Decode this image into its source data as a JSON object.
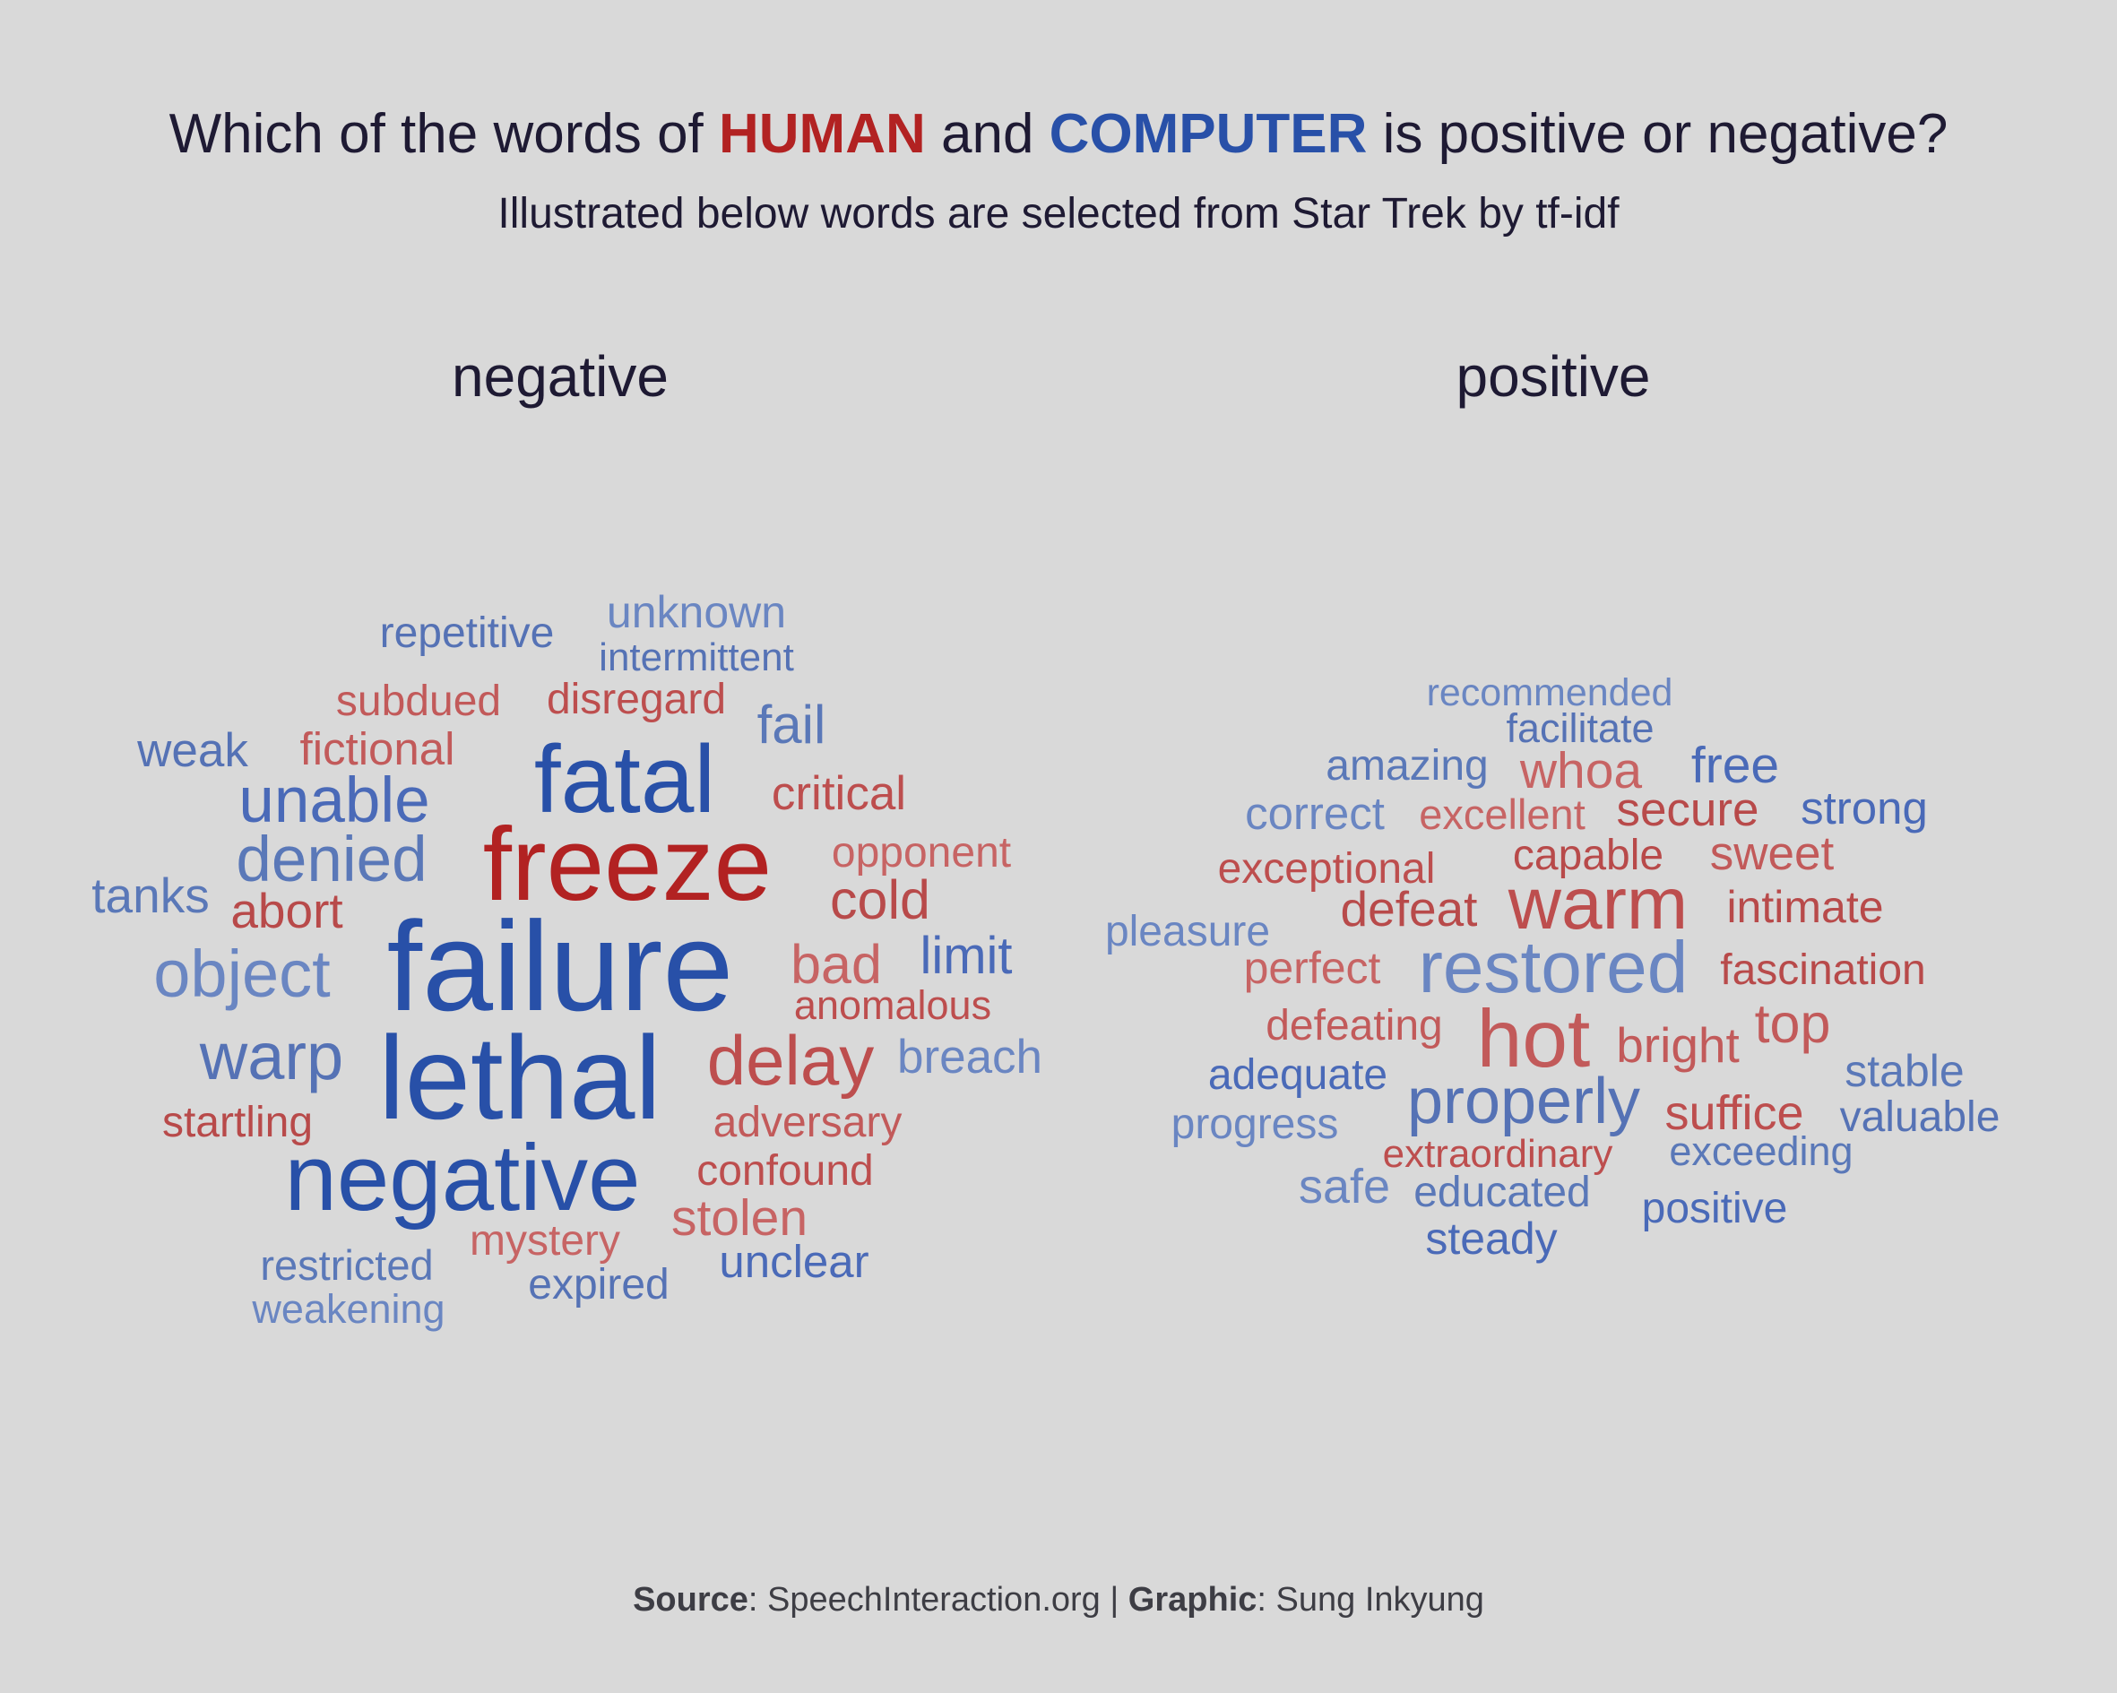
{
  "title": {
    "prefix": "Which of the words of ",
    "human": "HUMAN",
    "middle": " and ",
    "computer": "COMPUTER",
    "suffix": " is positive or negative?"
  },
  "subtitle": "Illustrated below words are selected from Star Trek by tf-idf",
  "caption": {
    "source_label": "Source",
    "source_value": ": SpeechInteraction.org | ",
    "graphic_label": "Graphic",
    "graphic_value": ": Sung Inkyung"
  },
  "colors": {
    "background": "#d9d9d9",
    "human": "#b22222",
    "computer": "#2850a8",
    "text": "#1e1a33"
  },
  "chart_data": {
    "type": "wordcloud",
    "facets": [
      "negative",
      "positive"
    ],
    "words": [
      {
        "word": "failure",
        "facet": "negative",
        "group": "computer",
        "weight": 100
      },
      {
        "word": "lethal",
        "facet": "negative",
        "group": "computer",
        "weight": 93
      },
      {
        "word": "freeze",
        "facet": "negative",
        "group": "human",
        "weight": 82
      },
      {
        "word": "fatal",
        "facet": "negative",
        "group": "computer",
        "weight": 75
      },
      {
        "word": "negative",
        "facet": "negative",
        "group": "computer",
        "weight": 74
      },
      {
        "word": "delay",
        "facet": "negative",
        "group": "human",
        "weight": 55
      },
      {
        "word": "object",
        "facet": "negative",
        "group": "computer",
        "weight": 52
      },
      {
        "word": "warp",
        "facet": "negative",
        "group": "computer",
        "weight": 52
      },
      {
        "word": "denied",
        "facet": "negative",
        "group": "computer",
        "weight": 50
      },
      {
        "word": "unable",
        "facet": "negative",
        "group": "computer",
        "weight": 50
      },
      {
        "word": "bad",
        "facet": "negative",
        "group": "human",
        "weight": 43
      },
      {
        "word": "cold",
        "facet": "negative",
        "group": "human",
        "weight": 43
      },
      {
        "word": "fail",
        "facet": "negative",
        "group": "computer",
        "weight": 42
      },
      {
        "word": "limit",
        "facet": "negative",
        "group": "computer",
        "weight": 41
      },
      {
        "word": "stolen",
        "facet": "negative",
        "group": "human",
        "weight": 40
      },
      {
        "word": "abort",
        "facet": "negative",
        "group": "human",
        "weight": 39
      },
      {
        "word": "tanks",
        "facet": "negative",
        "group": "computer",
        "weight": 39
      },
      {
        "word": "critical",
        "facet": "negative",
        "group": "human",
        "weight": 37
      },
      {
        "word": "breach",
        "facet": "negative",
        "group": "computer",
        "weight": 37
      },
      {
        "word": "weak",
        "facet": "negative",
        "group": "computer",
        "weight": 37
      },
      {
        "word": "fictional",
        "facet": "negative",
        "group": "human",
        "weight": 36
      },
      {
        "word": "unclear",
        "facet": "negative",
        "group": "computer",
        "weight": 36
      },
      {
        "word": "unknown",
        "facet": "negative",
        "group": "computer",
        "weight": 35
      },
      {
        "word": "repetitive",
        "facet": "negative",
        "group": "computer",
        "weight": 34
      },
      {
        "word": "subdued",
        "facet": "negative",
        "group": "human",
        "weight": 34
      },
      {
        "word": "disregard",
        "facet": "negative",
        "group": "human",
        "weight": 34
      },
      {
        "word": "opponent",
        "facet": "negative",
        "group": "human",
        "weight": 34
      },
      {
        "word": "startling",
        "facet": "negative",
        "group": "human",
        "weight": 34
      },
      {
        "word": "adversary",
        "facet": "negative",
        "group": "human",
        "weight": 34
      },
      {
        "word": "confound",
        "facet": "negative",
        "group": "human",
        "weight": 34
      },
      {
        "word": "mystery",
        "facet": "negative",
        "group": "human",
        "weight": 34
      },
      {
        "word": "expired",
        "facet": "negative",
        "group": "computer",
        "weight": 34
      },
      {
        "word": "restricted",
        "facet": "negative",
        "group": "computer",
        "weight": 33
      },
      {
        "word": "anomalous",
        "facet": "negative",
        "group": "human",
        "weight": 32
      },
      {
        "word": "weakening",
        "facet": "negative",
        "group": "computer",
        "weight": 32
      },
      {
        "word": "intermittent",
        "facet": "negative",
        "group": "computer",
        "weight": 31
      },
      {
        "word": "hot",
        "facet": "positive",
        "group": "human",
        "weight": 64
      },
      {
        "word": "warm",
        "facet": "positive",
        "group": "human",
        "weight": 58
      },
      {
        "word": "restored",
        "facet": "positive",
        "group": "computer",
        "weight": 58
      },
      {
        "word": "properly",
        "facet": "positive",
        "group": "computer",
        "weight": 51
      },
      {
        "word": "top",
        "facet": "positive",
        "group": "human",
        "weight": 43
      },
      {
        "word": "free",
        "facet": "positive",
        "group": "computer",
        "weight": 40
      },
      {
        "word": "whoa",
        "facet": "positive",
        "group": "human",
        "weight": 40
      },
      {
        "word": "defeat",
        "facet": "positive",
        "group": "human",
        "weight": 39
      },
      {
        "word": "bright",
        "facet": "positive",
        "group": "human",
        "weight": 39
      },
      {
        "word": "suffice",
        "facet": "positive",
        "group": "human",
        "weight": 38
      },
      {
        "word": "safe",
        "facet": "positive",
        "group": "computer",
        "weight": 38
      },
      {
        "word": "secure",
        "facet": "positive",
        "group": "human",
        "weight": 37
      },
      {
        "word": "sweet",
        "facet": "positive",
        "group": "human",
        "weight": 37
      },
      {
        "word": "strong",
        "facet": "positive",
        "group": "computer",
        "weight": 36
      },
      {
        "word": "correct",
        "facet": "positive",
        "group": "computer",
        "weight": 36
      },
      {
        "word": "intimate",
        "facet": "positive",
        "group": "human",
        "weight": 35
      },
      {
        "word": "stable",
        "facet": "positive",
        "group": "computer",
        "weight": 35
      },
      {
        "word": "steady",
        "facet": "positive",
        "group": "computer",
        "weight": 35
      },
      {
        "word": "perfect",
        "facet": "positive",
        "group": "human",
        "weight": 35
      },
      {
        "word": "capable",
        "facet": "positive",
        "group": "human",
        "weight": 34
      },
      {
        "word": "amazing",
        "facet": "positive",
        "group": "computer",
        "weight": 34
      },
      {
        "word": "exceptional",
        "facet": "positive",
        "group": "human",
        "weight": 34
      },
      {
        "word": "pleasure",
        "facet": "positive",
        "group": "computer",
        "weight": 34
      },
      {
        "word": "fascination",
        "facet": "positive",
        "group": "human",
        "weight": 34
      },
      {
        "word": "defeating",
        "facet": "positive",
        "group": "human",
        "weight": 34
      },
      {
        "word": "adequate",
        "facet": "positive",
        "group": "computer",
        "weight": 34
      },
      {
        "word": "progress",
        "facet": "positive",
        "group": "computer",
        "weight": 34
      },
      {
        "word": "valuable",
        "facet": "positive",
        "group": "computer",
        "weight": 34
      },
      {
        "word": "educated",
        "facet": "positive",
        "group": "computer",
        "weight": 34
      },
      {
        "word": "positive",
        "facet": "positive",
        "group": "computer",
        "weight": 34
      },
      {
        "word": "excellent",
        "facet": "positive",
        "group": "human",
        "weight": 33
      },
      {
        "word": "facilitate",
        "facet": "positive",
        "group": "computer",
        "weight": 32
      },
      {
        "word": "exceeding",
        "facet": "positive",
        "group": "computer",
        "weight": 32
      },
      {
        "word": "extraordinary",
        "facet": "positive",
        "group": "human",
        "weight": 31
      },
      {
        "word": "recommended",
        "facet": "positive",
        "group": "computer",
        "weight": 30
      }
    ]
  }
}
